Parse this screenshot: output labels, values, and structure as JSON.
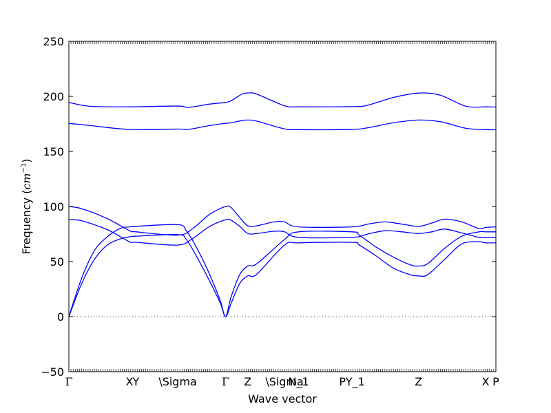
{
  "chart_data": {
    "type": "line",
    "title": "",
    "xlabel": "Wave vector",
    "ylabel": "Frequency",
    "ylabel_unit": "cm",
    "ylabel_unit_exp": "−1",
    "ylim": [
      -50,
      250
    ],
    "yticks": [
      -50,
      0,
      50,
      100,
      150,
      200,
      250
    ],
    "zero_line": {
      "y": 0,
      "style": "dotted"
    },
    "grid": false,
    "line_color": "#0000ff",
    "x_ticks": [
      {
        "x": 0.0,
        "label": "Γ"
      },
      {
        "x": 0.142,
        "label": "X"
      },
      {
        "x": 0.157,
        "label": "Y"
      },
      {
        "x": 0.255,
        "label": "\\Sigma"
      },
      {
        "x": 0.367,
        "label": "Γ"
      },
      {
        "x": 0.419,
        "label": "Z"
      },
      {
        "x": 0.505,
        "label": "\\Sigma"
      },
      {
        "x": 0.538,
        "label": "N_1"
      },
      {
        "x": 0.663,
        "label": "PY_1"
      },
      {
        "x": 0.819,
        "label": "Z"
      },
      {
        "x": 0.976,
        "label": "X"
      },
      {
        "x": 1.0,
        "label": "P"
      }
    ],
    "series": [
      {
        "values": [
          [
            0,
            194.5
          ],
          [
            0.05,
            191
          ],
          [
            0.142,
            190.5
          ],
          [
            0.255,
            191.2
          ],
          [
            0.28,
            190
          ],
          [
            0.33,
            193
          ],
          [
            0.367,
            194.5
          ],
          [
            0.38,
            196
          ],
          [
            0.405,
            202
          ],
          [
            0.419,
            203
          ],
          [
            0.44,
            202
          ],
          [
            0.505,
            191.5
          ],
          [
            0.538,
            190.5
          ],
          [
            0.663,
            190.7
          ],
          [
            0.7,
            192
          ],
          [
            0.76,
            199
          ],
          [
            0.819,
            203
          ],
          [
            0.87,
            201
          ],
          [
            0.93,
            191
          ],
          [
            0.976,
            190.5
          ],
          [
            1.0,
            190.3
          ]
        ]
      },
      {
        "values": [
          [
            0,
            175.5
          ],
          [
            0.05,
            173.5
          ],
          [
            0.142,
            170
          ],
          [
            0.255,
            170.3
          ],
          [
            0.28,
            170
          ],
          [
            0.33,
            173.5
          ],
          [
            0.367,
            175.5
          ],
          [
            0.38,
            176
          ],
          [
            0.405,
            178
          ],
          [
            0.419,
            178.5
          ],
          [
            0.44,
            177.5
          ],
          [
            0.505,
            170.5
          ],
          [
            0.538,
            169.8
          ],
          [
            0.663,
            170
          ],
          [
            0.7,
            171.5
          ],
          [
            0.76,
            176
          ],
          [
            0.819,
            178.5
          ],
          [
            0.87,
            177
          ],
          [
            0.93,
            171
          ],
          [
            0.976,
            169.8
          ],
          [
            1.0,
            169.7
          ]
        ]
      },
      {
        "values": [
          [
            0,
            100
          ],
          [
            0.03,
            98
          ],
          [
            0.09,
            89
          ],
          [
            0.142,
            78
          ],
          [
            0.157,
            77
          ],
          [
            0.255,
            74
          ],
          [
            0.29,
            80
          ],
          [
            0.33,
            93
          ],
          [
            0.367,
            100
          ],
          [
            0.38,
            99
          ],
          [
            0.4,
            90
          ],
          [
            0.419,
            82.5
          ],
          [
            0.44,
            82.5
          ],
          [
            0.48,
            86
          ],
          [
            0.505,
            86
          ],
          [
            0.538,
            81.5
          ],
          [
            0.663,
            81.5
          ],
          [
            0.7,
            84
          ],
          [
            0.74,
            86
          ],
          [
            0.78,
            84
          ],
          [
            0.819,
            82
          ],
          [
            0.85,
            85
          ],
          [
            0.88,
            88.5
          ],
          [
            0.92,
            86
          ],
          [
            0.96,
            80
          ],
          [
            0.976,
            81
          ],
          [
            1.0,
            81.5
          ]
        ]
      },
      {
        "values": [
          [
            0,
            88
          ],
          [
            0.03,
            87
          ],
          [
            0.09,
            79
          ],
          [
            0.142,
            68
          ],
          [
            0.157,
            67.5
          ],
          [
            0.255,
            65
          ],
          [
            0.29,
            71
          ],
          [
            0.33,
            82
          ],
          [
            0.367,
            88
          ],
          [
            0.38,
            87.5
          ],
          [
            0.4,
            82
          ],
          [
            0.419,
            75.5
          ],
          [
            0.44,
            75.5
          ],
          [
            0.48,
            77.5
          ],
          [
            0.505,
            77
          ],
          [
            0.538,
            72
          ],
          [
            0.663,
            72
          ],
          [
            0.7,
            75
          ],
          [
            0.74,
            78
          ],
          [
            0.78,
            77
          ],
          [
            0.819,
            75.5
          ],
          [
            0.85,
            77
          ],
          [
            0.88,
            79.5
          ],
          [
            0.92,
            76
          ],
          [
            0.96,
            72
          ],
          [
            0.976,
            72
          ],
          [
            1.0,
            72
          ]
        ]
      },
      {
        "values": [
          [
            0,
            0
          ],
          [
            0.03,
            35
          ],
          [
            0.06,
            60
          ],
          [
            0.09,
            72.5
          ],
          [
            0.12,
            80
          ],
          [
            0.142,
            81.5
          ],
          [
            0.157,
            82
          ],
          [
            0.255,
            83.5
          ],
          [
            0.275,
            78
          ],
          [
            0.3,
            62
          ],
          [
            0.33,
            38
          ],
          [
            0.355,
            14
          ],
          [
            0.367,
            0
          ],
          [
            0.38,
            18
          ],
          [
            0.4,
            38
          ],
          [
            0.419,
            46
          ],
          [
            0.44,
            48
          ],
          [
            0.505,
            70
          ],
          [
            0.538,
            77
          ],
          [
            0.663,
            77
          ],
          [
            0.68,
            74
          ],
          [
            0.72,
            63
          ],
          [
            0.76,
            54
          ],
          [
            0.8,
            47
          ],
          [
            0.819,
            46
          ],
          [
            0.84,
            48
          ],
          [
            0.88,
            62
          ],
          [
            0.92,
            73
          ],
          [
            0.96,
            77
          ],
          [
            0.976,
            77
          ],
          [
            1.0,
            77
          ]
        ]
      },
      {
        "values": [
          [
            0,
            0
          ],
          [
            0.03,
            30
          ],
          [
            0.06,
            52
          ],
          [
            0.09,
            65
          ],
          [
            0.12,
            70.5
          ],
          [
            0.142,
            72.5
          ],
          [
            0.157,
            73
          ],
          [
            0.255,
            74.5
          ],
          [
            0.275,
            70
          ],
          [
            0.3,
            54
          ],
          [
            0.33,
            32
          ],
          [
            0.355,
            12
          ],
          [
            0.367,
            0
          ],
          [
            0.38,
            12
          ],
          [
            0.4,
            30
          ],
          [
            0.419,
            37
          ],
          [
            0.44,
            38.5
          ],
          [
            0.505,
            65
          ],
          [
            0.538,
            67
          ],
          [
            0.663,
            67.5
          ],
          [
            0.68,
            65
          ],
          [
            0.72,
            55
          ],
          [
            0.76,
            44
          ],
          [
            0.8,
            38
          ],
          [
            0.819,
            37
          ],
          [
            0.84,
            38
          ],
          [
            0.88,
            52
          ],
          [
            0.92,
            66
          ],
          [
            0.96,
            68
          ],
          [
            0.976,
            67
          ],
          [
            1.0,
            67
          ]
        ]
      }
    ]
  }
}
